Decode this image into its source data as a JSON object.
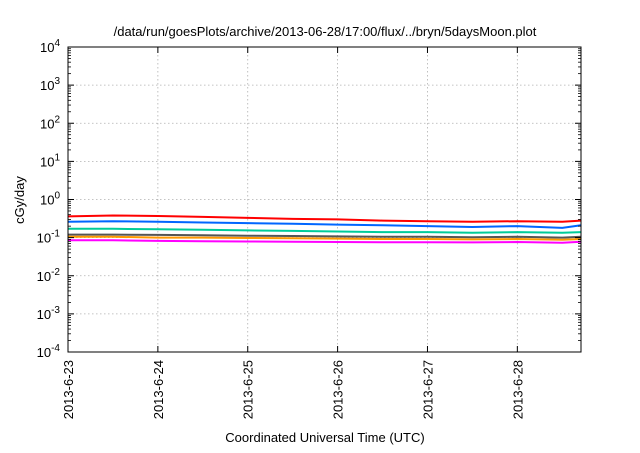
{
  "chart_data": {
    "type": "line",
    "title": "/data/run/goesPlots/archive/2013-06-28/17:00/flux/../bryn/5daysMoon.plot",
    "xlabel": "Coordinated Universal Time (UTC)",
    "ylabel": "cGy/day",
    "y_scale": "log",
    "ylim": [
      0.0001,
      10000
    ],
    "xlim": [
      "2013-06-23T00:00",
      "2013-06-28T17:00"
    ],
    "x_ticks": [
      "2013-6-23",
      "2013-6-24",
      "2013-6-25",
      "2013-6-26",
      "2013-6-27",
      "2013-6-28"
    ],
    "y_ticks": [
      {
        "base": "10",
        "exp": "-4"
      },
      {
        "base": "10",
        "exp": "-3"
      },
      {
        "base": "10",
        "exp": "-2"
      },
      {
        "base": "10",
        "exp": "-1"
      },
      {
        "base": "10",
        "exp": "0"
      },
      {
        "base": "10",
        "exp": "1"
      },
      {
        "base": "10",
        "exp": "2"
      },
      {
        "base": "10",
        "exp": "3"
      },
      {
        "base": "10",
        "exp": "4"
      }
    ],
    "grid": true,
    "x": [
      "2013-06-23T00:00",
      "2013-06-23T12:00",
      "2013-06-24T00:00",
      "2013-06-24T12:00",
      "2013-06-25T00:00",
      "2013-06-25T12:00",
      "2013-06-26T00:00",
      "2013-06-26T12:00",
      "2013-06-27T00:00",
      "2013-06-27T12:00",
      "2013-06-28T00:00",
      "2013-06-28T12:00",
      "2013-06-28T17:00"
    ],
    "series": [
      {
        "color": "#ff0000",
        "values": [
          0.36,
          0.38,
          0.37,
          0.35,
          0.33,
          0.31,
          0.3,
          0.28,
          0.27,
          0.26,
          0.27,
          0.26,
          0.28
        ]
      },
      {
        "color": "#0066ff",
        "values": [
          0.26,
          0.27,
          0.26,
          0.25,
          0.24,
          0.23,
          0.22,
          0.21,
          0.2,
          0.19,
          0.2,
          0.18,
          0.21
        ]
      },
      {
        "color": "#00cc99",
        "values": [
          0.17,
          0.17,
          0.165,
          0.16,
          0.155,
          0.15,
          0.145,
          0.14,
          0.14,
          0.135,
          0.14,
          0.135,
          0.14
        ]
      },
      {
        "color": "#555555",
        "values": [
          0.12,
          0.12,
          0.118,
          0.115,
          0.112,
          0.11,
          0.108,
          0.105,
          0.105,
          0.102,
          0.105,
          0.1,
          0.105
        ]
      },
      {
        "color": "#ff9900",
        "values": [
          0.105,
          0.105,
          0.1,
          0.1,
          0.098,
          0.096,
          0.094,
          0.092,
          0.092,
          0.09,
          0.092,
          0.088,
          0.092
        ]
      },
      {
        "color": "#ff00ff",
        "values": [
          0.085,
          0.085,
          0.082,
          0.08,
          0.079,
          0.078,
          0.077,
          0.076,
          0.076,
          0.075,
          0.077,
          0.073,
          0.078
        ]
      }
    ]
  }
}
